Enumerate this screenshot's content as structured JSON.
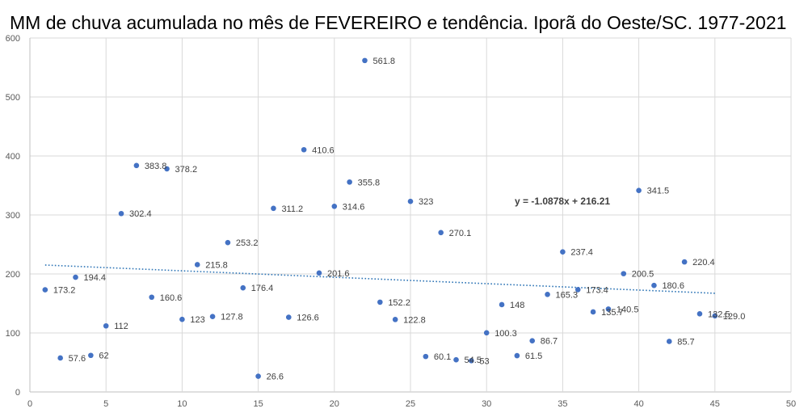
{
  "chart_data": {
    "type": "scatter",
    "title": "MM de chuva acumulada no mês de FEVEREIRO e tendência. Iporã do Oeste/SC. 1977-2021",
    "xlabel": "",
    "ylabel": "",
    "xlim": [
      0,
      50
    ],
    "ylim": [
      0,
      600
    ],
    "x_ticks": [
      0,
      5,
      10,
      15,
      20,
      25,
      30,
      35,
      40,
      45,
      50
    ],
    "y_ticks": [
      0,
      100,
      200,
      300,
      400,
      500,
      600
    ],
    "grid": true,
    "legend": "none",
    "colors": {
      "points": "#4472c4",
      "trendline": "#2e75b6",
      "grid": "#d9d9d9"
    },
    "series": [
      {
        "name": "Fevereiro",
        "x": [
          1,
          2,
          3,
          4,
          5,
          6,
          7,
          8,
          9,
          10,
          11,
          12,
          13,
          14,
          15,
          16,
          17,
          18,
          19,
          20,
          21,
          22,
          23,
          24,
          25,
          26,
          27,
          28,
          29,
          30,
          31,
          32,
          33,
          34,
          35,
          36,
          37,
          38,
          39,
          40,
          41,
          42,
          43,
          44,
          45
        ],
        "y": [
          173.2,
          57.6,
          194.4,
          62,
          112,
          302.4,
          383.8,
          160.6,
          378.2,
          123,
          215.8,
          127.8,
          253.2,
          176.4,
          26.6,
          311.2,
          126.6,
          410.6,
          201.6,
          314.6,
          355.8,
          561.8,
          152.2,
          122.8,
          323,
          60.1,
          270.1,
          54.5,
          53,
          100.3,
          148,
          61.5,
          86.7,
          165.3,
          237.4,
          173.4,
          135.7,
          140.5,
          200.5,
          341.5,
          180.6,
          85.7,
          220.4,
          132.5,
          129.0
        ],
        "labels": [
          "173.2",
          "57.6",
          "194.4",
          "62",
          "112",
          "302.4",
          "383.8",
          "160.6",
          "378.2",
          "123",
          "215.8",
          "127.8",
          "253.2",
          "176.4",
          "26.6",
          "311.2",
          "126.6",
          "410.6",
          "201.6",
          "314.6",
          "355.8",
          "561.8",
          "152.2",
          "122.8",
          "323",
          "60.1",
          "270.1",
          "54.5",
          "53",
          "100.3",
          "148",
          "61.5",
          "86.7",
          "165.3",
          "237.4",
          "173.4",
          "135.7",
          "140.5",
          "200.5",
          "341.5",
          "180.6",
          "85.7",
          "220.4",
          "132.5",
          "129.0"
        ]
      }
    ],
    "trendline": {
      "type": "linear",
      "slope": -1.0878,
      "intercept": 216.21,
      "x_range": [
        1,
        45
      ],
      "equation": "y = -1.0878x + 216.21"
    }
  }
}
